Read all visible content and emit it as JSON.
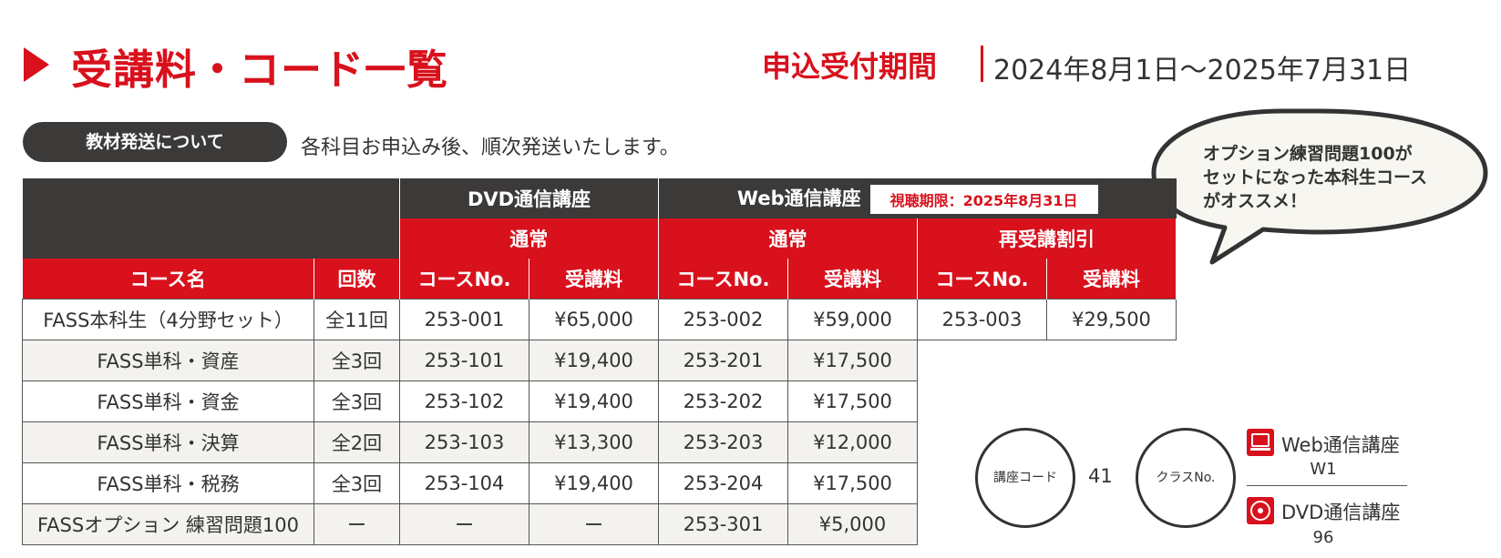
{
  "header": {
    "title": "受講料・コード一覧",
    "period_label": "申込受付期間",
    "period_value": "2024年8月1日～2025年7月31日"
  },
  "notice": {
    "pill_label": "教材発送について",
    "text": "各科目お申込み後、順次発送いたします。"
  },
  "bubble": {
    "line1": "オプション練習問題100が",
    "line2": "セットになった本科生コース",
    "line3": "がオススメ！"
  },
  "table": {
    "group_dvd": "DVD通信講座",
    "group_web": "Web通信講座",
    "web_deadline": "視聴期限：2025年8月31日",
    "sub_normal_dvd": "通常",
    "sub_normal_web": "通常",
    "sub_retake": "再受講割引",
    "col_course": "コース名",
    "col_times": "回数",
    "col_code": "コースNo.",
    "col_fee": "受講料",
    "rows": [
      {
        "name": "FASS本科生（4分野セット）",
        "times": "全11回",
        "dvd_no": "253-001",
        "dvd_fee": "¥65,000",
        "web_no": "253-002",
        "web_fee": "¥59,000",
        "re_no": "253-003",
        "re_fee": "¥29,500"
      },
      {
        "name": "FASS単科・資産",
        "times": "全3回",
        "dvd_no": "253-101",
        "dvd_fee": "¥19,400",
        "web_no": "253-201",
        "web_fee": "¥17,500"
      },
      {
        "name": "FASS単科・資金",
        "times": "全3回",
        "dvd_no": "253-102",
        "dvd_fee": "¥19,400",
        "web_no": "253-202",
        "web_fee": "¥17,500"
      },
      {
        "name": "FASS単科・決算",
        "times": "全2回",
        "dvd_no": "253-103",
        "dvd_fee": "¥13,300",
        "web_no": "253-203",
        "web_fee": "¥12,000"
      },
      {
        "name": "FASS単科・税務",
        "times": "全3回",
        "dvd_no": "253-104",
        "dvd_fee": "¥19,400",
        "web_no": "253-204",
        "web_fee": "¥17,500"
      },
      {
        "name": "FASSオプション 練習問題100",
        "times": "ー",
        "dvd_no": "ー",
        "dvd_fee": "ー",
        "web_no": "253-301",
        "web_fee": "¥5,000"
      }
    ]
  },
  "codes": {
    "course_code_label": "講座コード",
    "course_code_value": "41",
    "class_no_label": "クラスNo.",
    "web_label": "Web通信講座",
    "web_code": "W1",
    "dvd_label": "DVD通信講座",
    "dvd_code": "96",
    "web_icon": "web-course-icon",
    "dvd_icon": "dvd-disc-icon"
  },
  "colors": {
    "accent_red": "#d8111c",
    "dark": "#3c3939",
    "alt_row": "#f3f2ee"
  }
}
